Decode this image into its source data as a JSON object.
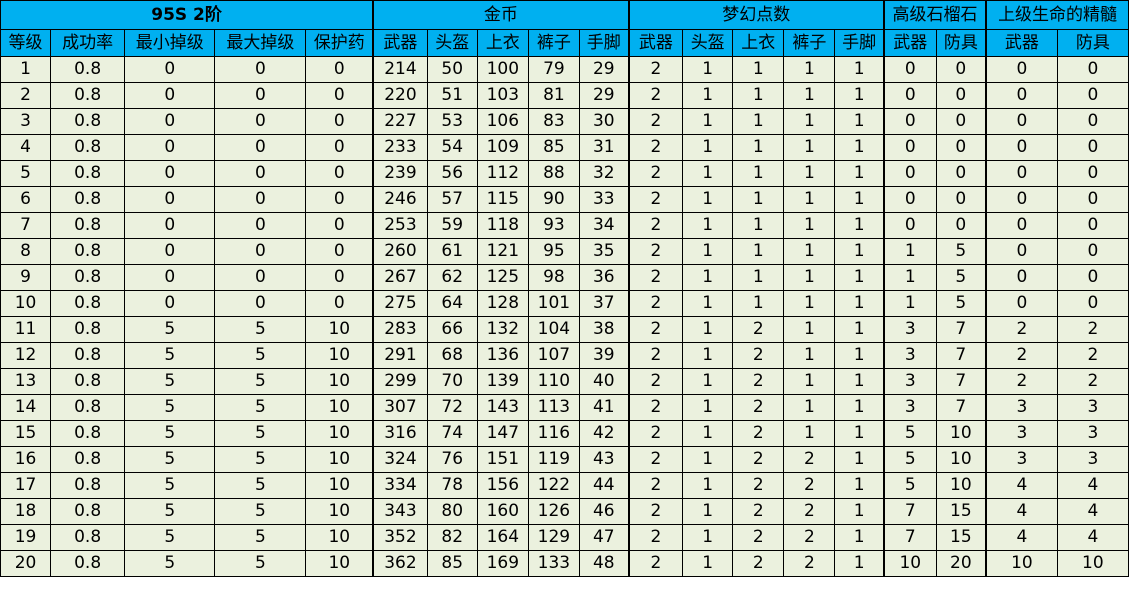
{
  "title": "95S 2阶",
  "groups": {
    "gold": "金币",
    "dream": "梦幻点数",
    "garnet": "高级石榴石",
    "essence": "上级生命的精髓"
  },
  "columns": [
    "等级",
    "成功率",
    "最小掉级",
    "最大掉级",
    "保护药",
    "武器",
    "头盔",
    "上衣",
    "裤子",
    "手脚",
    "武器",
    "头盔",
    "上衣",
    "裤子",
    "手脚",
    "武器",
    "防具",
    "武器",
    "防具"
  ],
  "rows": [
    [
      "1",
      "0.8",
      "0",
      "0",
      "0",
      "214",
      "50",
      "100",
      "79",
      "29",
      "2",
      "1",
      "1",
      "1",
      "1",
      "0",
      "0",
      "0",
      "0"
    ],
    [
      "2",
      "0.8",
      "0",
      "0",
      "0",
      "220",
      "51",
      "103",
      "81",
      "29",
      "2",
      "1",
      "1",
      "1",
      "1",
      "0",
      "0",
      "0",
      "0"
    ],
    [
      "3",
      "0.8",
      "0",
      "0",
      "0",
      "227",
      "53",
      "106",
      "83",
      "30",
      "2",
      "1",
      "1",
      "1",
      "1",
      "0",
      "0",
      "0",
      "0"
    ],
    [
      "4",
      "0.8",
      "0",
      "0",
      "0",
      "233",
      "54",
      "109",
      "85",
      "31",
      "2",
      "1",
      "1",
      "1",
      "1",
      "0",
      "0",
      "0",
      "0"
    ],
    [
      "5",
      "0.8",
      "0",
      "0",
      "0",
      "239",
      "56",
      "112",
      "88",
      "32",
      "2",
      "1",
      "1",
      "1",
      "1",
      "0",
      "0",
      "0",
      "0"
    ],
    [
      "6",
      "0.8",
      "0",
      "0",
      "0",
      "246",
      "57",
      "115",
      "90",
      "33",
      "2",
      "1",
      "1",
      "1",
      "1",
      "0",
      "0",
      "0",
      "0"
    ],
    [
      "7",
      "0.8",
      "0",
      "0",
      "0",
      "253",
      "59",
      "118",
      "93",
      "34",
      "2",
      "1",
      "1",
      "1",
      "1",
      "0",
      "0",
      "0",
      "0"
    ],
    [
      "8",
      "0.8",
      "0",
      "0",
      "0",
      "260",
      "61",
      "121",
      "95",
      "35",
      "2",
      "1",
      "1",
      "1",
      "1",
      "1",
      "5",
      "0",
      "0"
    ],
    [
      "9",
      "0.8",
      "0",
      "0",
      "0",
      "267",
      "62",
      "125",
      "98",
      "36",
      "2",
      "1",
      "1",
      "1",
      "1",
      "1",
      "5",
      "0",
      "0"
    ],
    [
      "10",
      "0.8",
      "0",
      "0",
      "0",
      "275",
      "64",
      "128",
      "101",
      "37",
      "2",
      "1",
      "1",
      "1",
      "1",
      "1",
      "5",
      "0",
      "0"
    ],
    [
      "11",
      "0.8",
      "5",
      "5",
      "10",
      "283",
      "66",
      "132",
      "104",
      "38",
      "2",
      "1",
      "2",
      "1",
      "1",
      "3",
      "7",
      "2",
      "2"
    ],
    [
      "12",
      "0.8",
      "5",
      "5",
      "10",
      "291",
      "68",
      "136",
      "107",
      "39",
      "2",
      "1",
      "2",
      "1",
      "1",
      "3",
      "7",
      "2",
      "2"
    ],
    [
      "13",
      "0.8",
      "5",
      "5",
      "10",
      "299",
      "70",
      "139",
      "110",
      "40",
      "2",
      "1",
      "2",
      "1",
      "1",
      "3",
      "7",
      "2",
      "2"
    ],
    [
      "14",
      "0.8",
      "5",
      "5",
      "10",
      "307",
      "72",
      "143",
      "113",
      "41",
      "2",
      "1",
      "2",
      "1",
      "1",
      "3",
      "7",
      "3",
      "3"
    ],
    [
      "15",
      "0.8",
      "5",
      "5",
      "10",
      "316",
      "74",
      "147",
      "116",
      "42",
      "2",
      "1",
      "2",
      "1",
      "1",
      "5",
      "10",
      "3",
      "3"
    ],
    [
      "16",
      "0.8",
      "5",
      "5",
      "10",
      "324",
      "76",
      "151",
      "119",
      "43",
      "2",
      "1",
      "2",
      "2",
      "1",
      "5",
      "10",
      "3",
      "3"
    ],
    [
      "17",
      "0.8",
      "5",
      "5",
      "10",
      "334",
      "78",
      "156",
      "122",
      "44",
      "2",
      "1",
      "2",
      "2",
      "1",
      "5",
      "10",
      "4",
      "4"
    ],
    [
      "18",
      "0.8",
      "5",
      "5",
      "10",
      "343",
      "80",
      "160",
      "126",
      "46",
      "2",
      "1",
      "2",
      "2",
      "1",
      "7",
      "15",
      "4",
      "4"
    ],
    [
      "19",
      "0.8",
      "5",
      "5",
      "10",
      "352",
      "82",
      "164",
      "129",
      "47",
      "2",
      "1",
      "2",
      "2",
      "1",
      "7",
      "15",
      "4",
      "4"
    ],
    [
      "20",
      "0.8",
      "5",
      "5",
      "10",
      "362",
      "85",
      "169",
      "133",
      "48",
      "2",
      "1",
      "2",
      "2",
      "1",
      "10",
      "20",
      "10",
      "10"
    ]
  ]
}
